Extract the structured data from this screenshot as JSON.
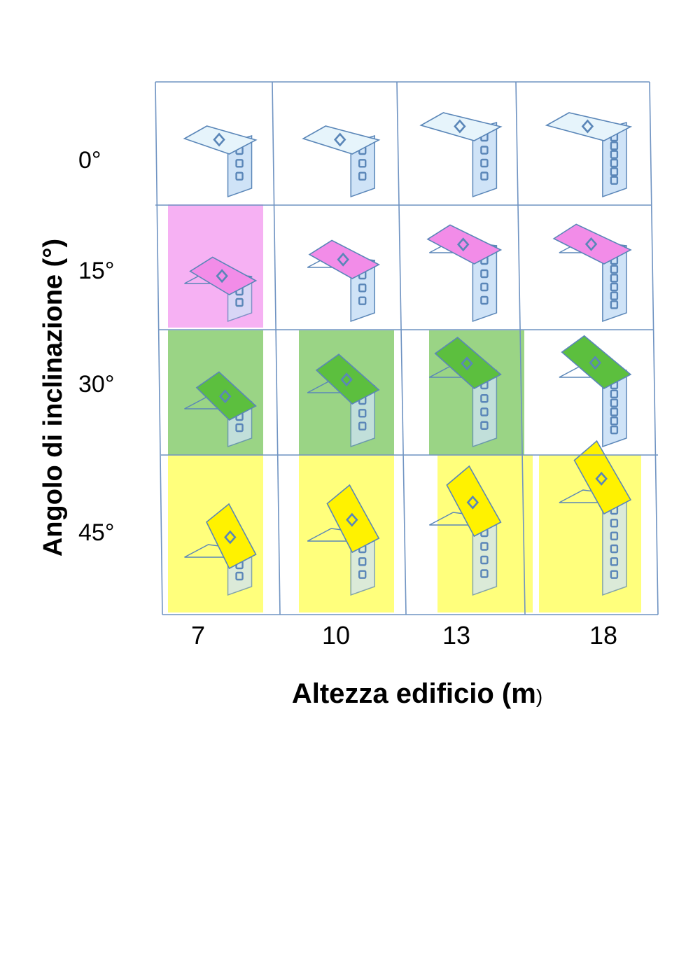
{
  "figure": {
    "y_axis_label": "Angolo di inclinazione (°)",
    "x_axis_label_main": "Altezza edificio (m",
    "x_axis_label_close": ")",
    "row_labels": [
      "0°",
      "15°",
      "30°",
      "45°"
    ],
    "column_labels": [
      "7",
      "10",
      "13",
      "18"
    ],
    "highlight_colors": {
      "15": "#f5a9f2",
      "30": "#8fcf78",
      "45": "#ffff6e"
    },
    "roof_colors": {
      "0": "#e6f4fb",
      "15": "#f28ce8",
      "30": "#5cbf3e",
      "45": "#fff200"
    },
    "wall_color": "#cfe3f7",
    "outline_color": "#5a86b8",
    "cells": [
      {
        "angle": "0°",
        "height": "7",
        "highlighted": false,
        "floors": 3
      },
      {
        "angle": "0°",
        "height": "10",
        "highlighted": false,
        "floors": 3
      },
      {
        "angle": "0°",
        "height": "13",
        "highlighted": false,
        "floors": 4
      },
      {
        "angle": "0°",
        "height": "18",
        "highlighted": false,
        "floors": 6
      },
      {
        "angle": "15°",
        "height": "7",
        "highlighted": true,
        "floors": 2
      },
      {
        "angle": "15°",
        "height": "10",
        "highlighted": false,
        "floors": 3
      },
      {
        "angle": "15°",
        "height": "13",
        "highlighted": false,
        "floors": 4
      },
      {
        "angle": "15°",
        "height": "18",
        "highlighted": false,
        "floors": 6
      },
      {
        "angle": "30°",
        "height": "7",
        "highlighted": true,
        "floors": 2
      },
      {
        "angle": "30°",
        "height": "10",
        "highlighted": true,
        "floors": 3
      },
      {
        "angle": "30°",
        "height": "13",
        "highlighted": true,
        "floors": 4
      },
      {
        "angle": "30°",
        "height": "18",
        "highlighted": false,
        "floors": 6
      },
      {
        "angle": "45°",
        "height": "7",
        "highlighted": true,
        "floors": 2
      },
      {
        "angle": "45°",
        "height": "10",
        "highlighted": true,
        "floors": 3
      },
      {
        "angle": "45°",
        "height": "13",
        "highlighted": true,
        "floors": 4
      },
      {
        "angle": "45°",
        "height": "18",
        "highlighted": true,
        "floors": 6
      }
    ]
  }
}
